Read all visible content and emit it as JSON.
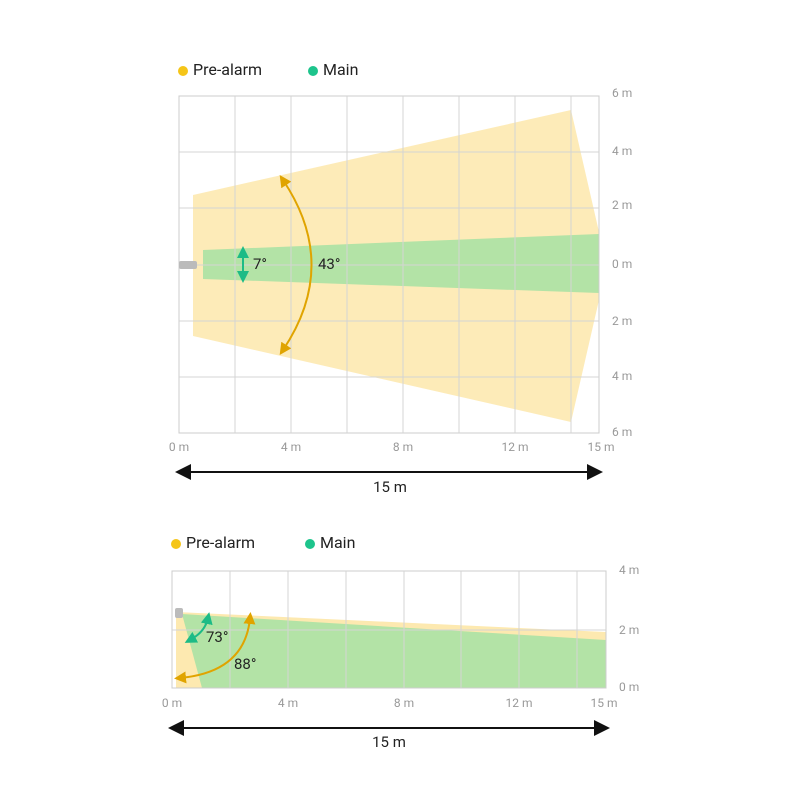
{
  "top": {
    "legend": [
      "Pre-alarm",
      "Main"
    ],
    "x_ticks": [
      "0 m",
      "4 m",
      "8 m",
      "12 m",
      "15 m"
    ],
    "y_ticks": [
      "6 m",
      "4 m",
      "2 m",
      "0 m",
      "2 m",
      "4 m",
      "6 m"
    ],
    "angles": [
      "7°",
      "43°"
    ],
    "span": "15 m"
  },
  "bottom": {
    "legend": [
      "Pre-alarm",
      "Main"
    ],
    "x_ticks": [
      "0 m",
      "4 m",
      "8 m",
      "12 m",
      "15 m"
    ],
    "y_ticks": [
      "4 m",
      "2 m",
      "0 m"
    ],
    "angles": [
      "73°",
      "88°"
    ],
    "span": "15 m"
  }
}
